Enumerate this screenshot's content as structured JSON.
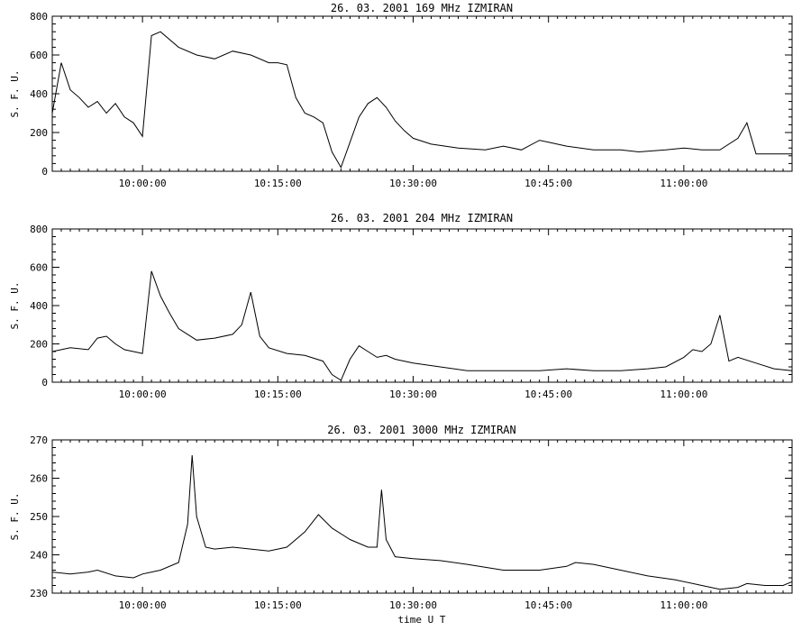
{
  "chart_data": [
    {
      "type": "line",
      "title": "26. 03. 2001   169 MHz   IZMIRAN",
      "ylabel": "S. F. U.",
      "xlabel": "",
      "xlim": [
        "09:50:00",
        "11:12:00"
      ],
      "ylim": [
        0,
        800
      ],
      "yticks": [
        0,
        200,
        400,
        600,
        800
      ],
      "xticks": [
        "10:00:00",
        "10:15:00",
        "10:30:00",
        "10:45:00",
        "11:00:00"
      ],
      "grid": false,
      "series": [
        {
          "x": [
            "09:50:00",
            "09:51:00",
            "09:52:00",
            "09:53:00",
            "09:54:00",
            "09:55:00",
            "09:56:00",
            "09:57:00",
            "09:58:00",
            "09:59:00",
            "10:00:00",
            "10:01:00",
            "10:02:00",
            "10:04:00",
            "10:06:00",
            "10:08:00",
            "10:10:00",
            "10:12:00",
            "10:14:00",
            "10:15:00",
            "10:16:00",
            "10:17:00",
            "10:18:00",
            "10:19:00",
            "10:20:00",
            "10:21:00",
            "10:22:00",
            "10:23:00",
            "10:24:00",
            "10:25:00",
            "10:26:00",
            "10:27:00",
            "10:28:00",
            "10:29:00",
            "10:30:00",
            "10:32:00",
            "10:35:00",
            "10:38:00",
            "10:40:00",
            "10:42:00",
            "10:44:00",
            "10:45:00",
            "10:47:00",
            "10:50:00",
            "10:53:00",
            "10:55:00",
            "10:58:00",
            "11:00:00",
            "11:02:00",
            "11:04:00",
            "11:06:00",
            "11:07:00",
            "11:08:00",
            "11:10:00",
            "11:12:00"
          ],
          "y": [
            300,
            560,
            420,
            380,
            330,
            360,
            300,
            350,
            280,
            250,
            180,
            700,
            720,
            640,
            600,
            580,
            620,
            600,
            560,
            560,
            550,
            380,
            300,
            280,
            250,
            100,
            20,
            150,
            280,
            350,
            380,
            330,
            260,
            210,
            170,
            140,
            120,
            110,
            130,
            110,
            160,
            150,
            130,
            110,
            110,
            100,
            110,
            120,
            110,
            110,
            170,
            250,
            90,
            90,
            90
          ]
        }
      ]
    },
    {
      "type": "line",
      "title": "26. 03. 2001   204 MHz   IZMIRAN",
      "ylabel": "S. F. U.",
      "xlabel": "",
      "xlim": [
        "09:50:00",
        "11:12:00"
      ],
      "ylim": [
        0,
        800
      ],
      "yticks": [
        0,
        200,
        400,
        600,
        800
      ],
      "xticks": [
        "10:00:00",
        "10:15:00",
        "10:30:00",
        "10:45:00",
        "11:00:00"
      ],
      "grid": false,
      "series": [
        {
          "x": [
            "09:50:00",
            "09:52:00",
            "09:54:00",
            "09:55:00",
            "09:56:00",
            "09:57:00",
            "09:58:00",
            "09:59:00",
            "10:00:00",
            "10:01:00",
            "10:02:00",
            "10:03:00",
            "10:04:00",
            "10:05:00",
            "10:06:00",
            "10:08:00",
            "10:10:00",
            "10:11:00",
            "10:12:00",
            "10:13:00",
            "10:14:00",
            "10:16:00",
            "10:18:00",
            "10:20:00",
            "10:21:00",
            "10:22:00",
            "10:23:00",
            "10:24:00",
            "10:25:00",
            "10:26:00",
            "10:27:00",
            "10:28:00",
            "10:30:00",
            "10:33:00",
            "10:36:00",
            "10:40:00",
            "10:44:00",
            "10:47:00",
            "10:50:00",
            "10:53:00",
            "10:56:00",
            "10:58:00",
            "11:00:00",
            "11:01:00",
            "11:02:00",
            "11:03:00",
            "11:04:00",
            "11:05:00",
            "11:06:00",
            "11:08:00",
            "11:10:00",
            "11:12:00"
          ],
          "y": [
            160,
            180,
            170,
            230,
            240,
            200,
            170,
            160,
            150,
            580,
            450,
            360,
            280,
            250,
            220,
            230,
            250,
            300,
            470,
            240,
            180,
            150,
            140,
            110,
            40,
            10,
            120,
            190,
            160,
            130,
            140,
            120,
            100,
            80,
            60,
            60,
            60,
            70,
            60,
            60,
            70,
            80,
            130,
            170,
            160,
            200,
            350,
            110,
            130,
            100,
            70,
            60
          ]
        }
      ]
    },
    {
      "type": "line",
      "title": "26. 03. 2001   3000 MHz   IZMIRAN",
      "ylabel": "S. F. U.",
      "xlabel": "time U T",
      "xlim": [
        "09:50:00",
        "11:12:00"
      ],
      "ylim": [
        230,
        270
      ],
      "yticks": [
        230,
        240,
        250,
        260,
        270
      ],
      "xticks": [
        "10:00:00",
        "10:15:00",
        "10:30:00",
        "10:45:00",
        "11:00:00"
      ],
      "grid": false,
      "series": [
        {
          "x": [
            "09:50:00",
            "09:52:00",
            "09:54:00",
            "09:55:00",
            "09:57:00",
            "09:59:00",
            "10:00:00",
            "10:02:00",
            "10:04:00",
            "10:05:00",
            "10:05:30",
            "10:06:00",
            "10:07:00",
            "10:08:00",
            "10:10:00",
            "10:12:00",
            "10:14:00",
            "10:16:00",
            "10:18:00",
            "10:19:30",
            "10:21:00",
            "10:23:00",
            "10:25:00",
            "10:26:00",
            "10:26:30",
            "10:27:00",
            "10:28:00",
            "10:30:00",
            "10:33:00",
            "10:36:00",
            "10:40:00",
            "10:44:00",
            "10:47:00",
            "10:48:00",
            "10:50:00",
            "10:53:00",
            "10:56:00",
            "10:59:00",
            "11:02:00",
            "11:04:00",
            "11:06:00",
            "11:07:00",
            "11:09:00",
            "11:11:00",
            "11:12:00"
          ],
          "y": [
            235.5,
            235,
            235.5,
            236,
            234.5,
            234,
            235,
            236,
            238,
            248,
            266,
            250,
            242,
            241.5,
            242,
            241.5,
            241,
            242,
            246,
            250.5,
            247,
            244,
            242,
            242,
            257,
            244,
            239.5,
            239,
            238.5,
            237.5,
            236,
            236,
            237,
            238,
            237.5,
            236,
            234.5,
            233.5,
            232,
            231,
            231.5,
            232.5,
            232,
            232,
            233
          ]
        }
      ]
    }
  ]
}
